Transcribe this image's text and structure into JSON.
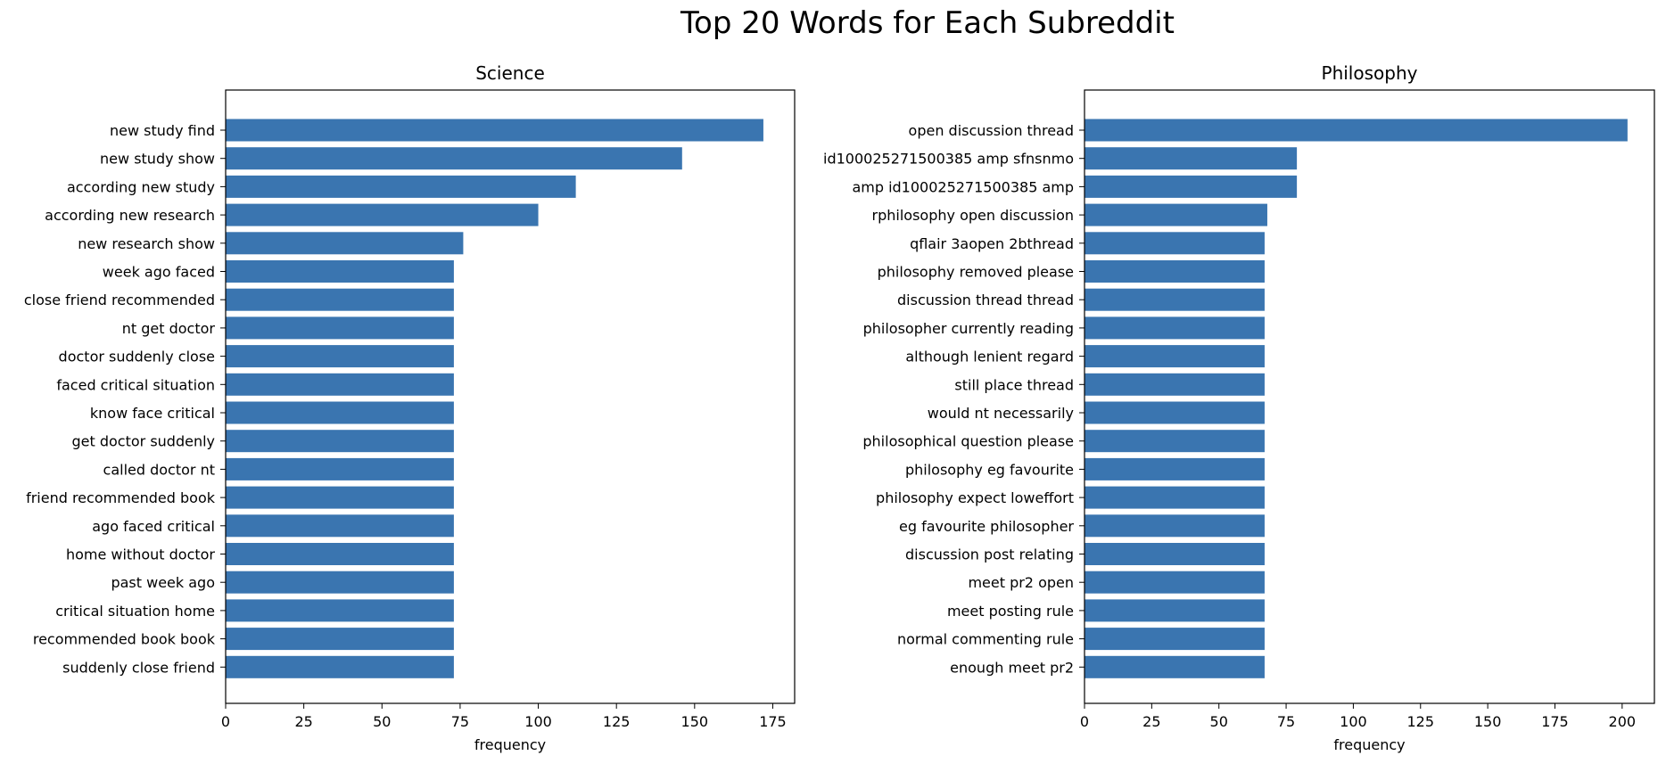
{
  "figure": {
    "title": "Top 20 Words for Each Subreddit"
  },
  "chart_data": [
    {
      "type": "bar",
      "orientation": "horizontal",
      "title": "Science",
      "xlabel": "frequency",
      "ylabel": "",
      "color": "#3a75b0",
      "xlim": [
        0,
        182
      ],
      "xticks": [
        0,
        25,
        50,
        75,
        100,
        125,
        150,
        175
      ],
      "categories": [
        "new study find",
        "new study show",
        "according new study",
        "according new research",
        "new research show",
        "week ago faced",
        "close friend recommended",
        "nt get doctor",
        "doctor suddenly close",
        "faced critical situation",
        "know face critical",
        "get doctor suddenly",
        "called doctor nt",
        "friend recommended book",
        "ago faced critical",
        "home without doctor",
        "past week ago",
        "critical situation home",
        "recommended book book",
        "suddenly close friend"
      ],
      "values": [
        172,
        146,
        112,
        100,
        76,
        73,
        73,
        73,
        73,
        73,
        73,
        73,
        73,
        73,
        73,
        73,
        73,
        73,
        73,
        73
      ]
    },
    {
      "type": "bar",
      "orientation": "horizontal",
      "title": "Philosophy",
      "xlabel": "frequency",
      "ylabel": "",
      "color": "#3a75b0",
      "xlim": [
        0,
        212
      ],
      "xticks": [
        0,
        25,
        50,
        75,
        100,
        125,
        150,
        175,
        200
      ],
      "categories": [
        "open discussion thread",
        "id100025271500385 amp sfnsnmo",
        "amp id100025271500385 amp",
        "rphilosophy open discussion",
        "qflair 3aopen 2bthread",
        "philosophy removed please",
        "discussion thread thread",
        "philosopher currently reading",
        "although lenient regard",
        "still place thread",
        "would nt necessarily",
        "philosophical question please",
        "philosophy eg favourite",
        "philosophy expect loweffort",
        "eg favourite philosopher",
        "discussion post relating",
        "meet pr2 open",
        "meet posting rule",
        "normal commenting rule",
        "enough meet pr2"
      ],
      "values": [
        202,
        79,
        79,
        68,
        67,
        67,
        67,
        67,
        67,
        67,
        67,
        67,
        67,
        67,
        67,
        67,
        67,
        67,
        67,
        67
      ]
    }
  ]
}
